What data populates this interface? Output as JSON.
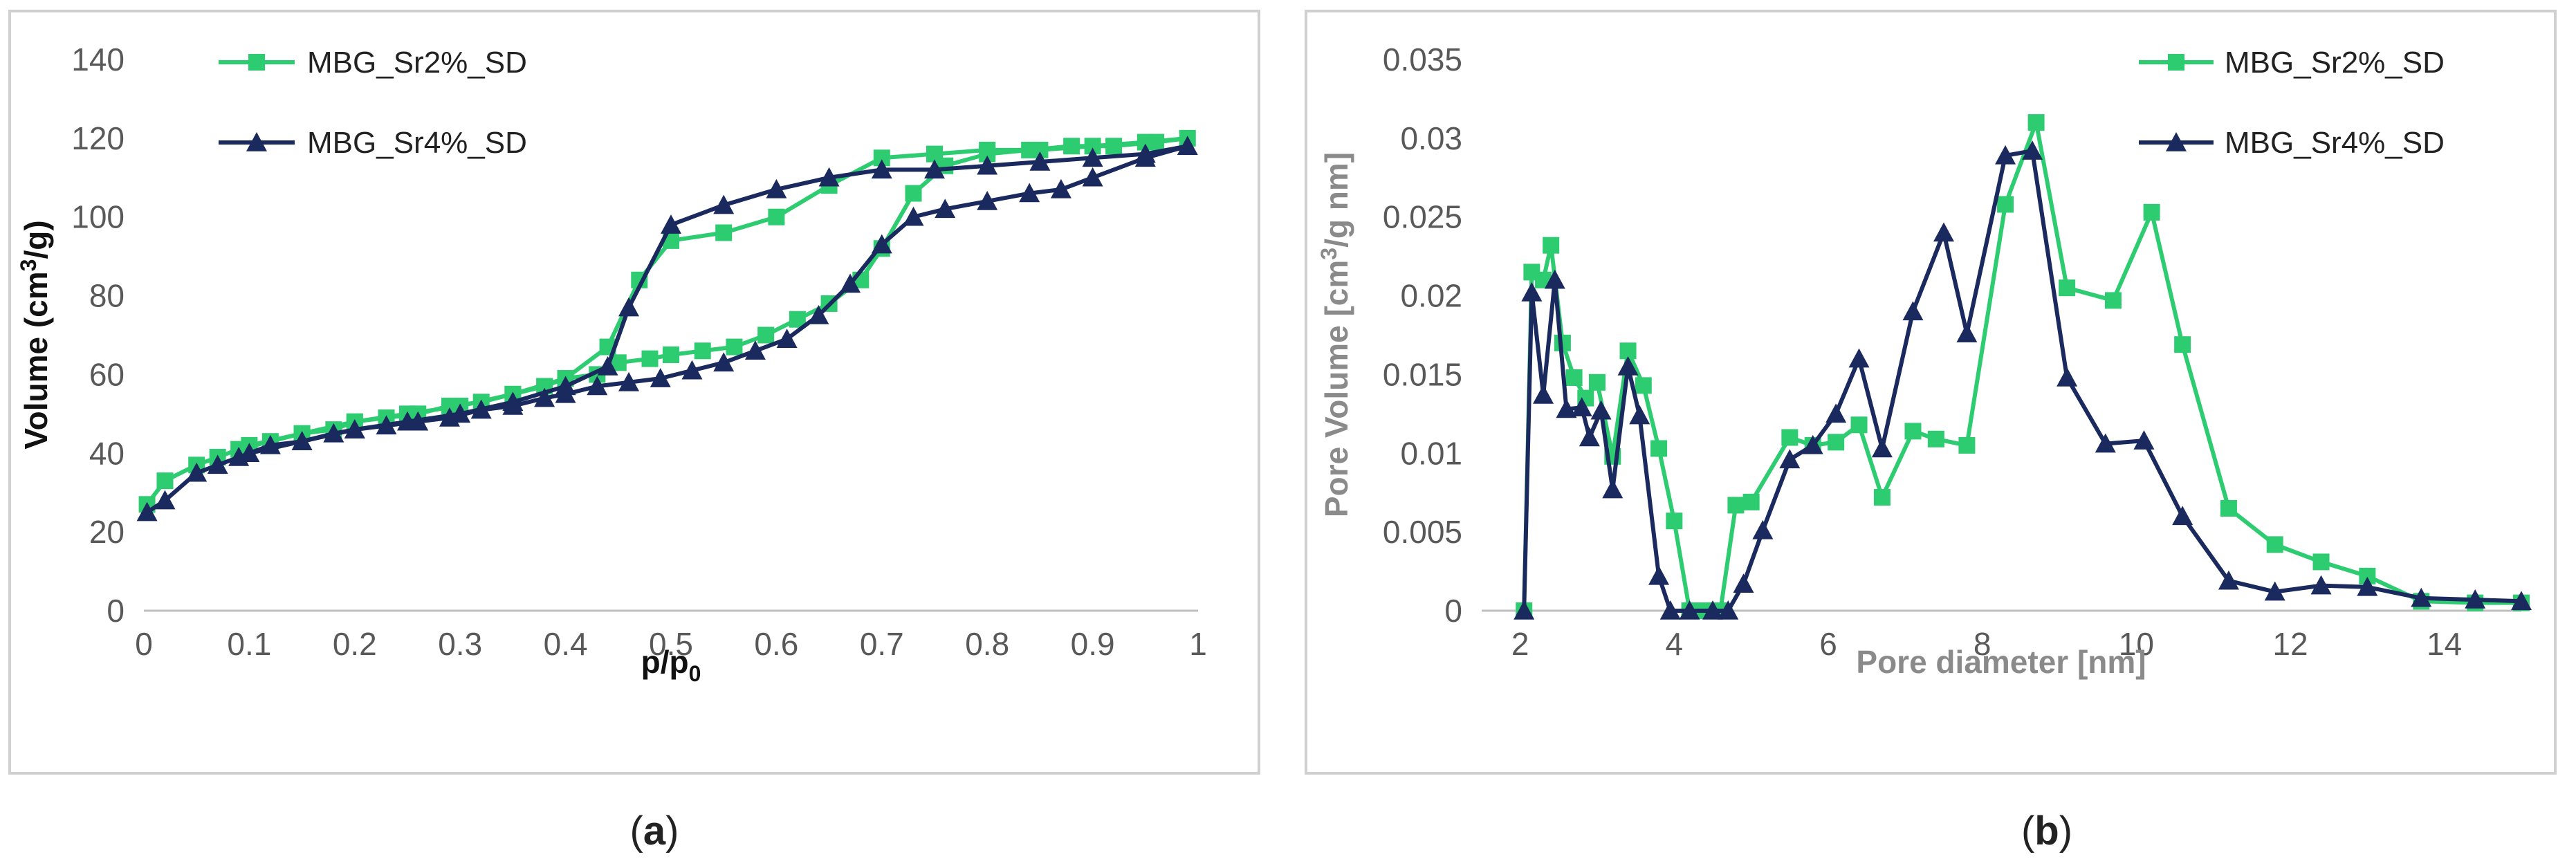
{
  "captions": {
    "a_pre": "(",
    "a_letter": "a",
    "a_post": ")",
    "b_pre": "(",
    "b_letter": "b",
    "b_post": ")"
  },
  "colors": {
    "green": "#2ecc71",
    "navy": "#1b2a5e"
  },
  "chart_data": [
    {
      "type": "line",
      "panel": "a",
      "title": "",
      "xlabel_main": "p/p",
      "xlabel_sub": "0",
      "ylabel_pre": "Volume (cm",
      "ylabel_sup": "3",
      "ylabel_post": "/g)",
      "xlim": [
        0,
        1
      ],
      "ylim": [
        0,
        140
      ],
      "xticks": [
        0,
        0.1,
        0.2,
        0.3,
        0.4,
        0.5,
        0.6,
        0.7,
        0.8,
        0.9,
        1
      ],
      "xtick_labels": [
        "0",
        "0.1",
        "0.2",
        "0.3",
        "0.4",
        "0.5",
        "0.6",
        "0.7",
        "0.8",
        "0.9",
        "1"
      ],
      "yticks": [
        0,
        20,
        40,
        60,
        80,
        100,
        120,
        140
      ],
      "ytick_labels": [
        "0",
        "20",
        "40",
        "60",
        "80",
        "100",
        "120",
        "140"
      ],
      "legend_position": "top-left",
      "series": [
        {
          "name": "MBG_Sr2%_SD",
          "color": "#2ecc71",
          "marker": "square",
          "points": [
            [
              0.003,
              27
            ],
            [
              0.02,
              33
            ],
            [
              0.05,
              37
            ],
            [
              0.07,
              39
            ],
            [
              0.09,
              41
            ],
            [
              0.12,
              43
            ],
            [
              0.15,
              45
            ],
            [
              0.18,
              46
            ],
            [
              0.2,
              48
            ],
            [
              0.23,
              49
            ],
            [
              0.26,
              50
            ],
            [
              0.29,
              52
            ],
            [
              0.32,
              53
            ],
            [
              0.35,
              55
            ],
            [
              0.38,
              57
            ],
            [
              0.4,
              59
            ],
            [
              0.43,
              60
            ],
            [
              0.45,
              63
            ],
            [
              0.48,
              64
            ],
            [
              0.5,
              65
            ],
            [
              0.53,
              66
            ],
            [
              0.56,
              67
            ],
            [
              0.59,
              70
            ],
            [
              0.62,
              74
            ],
            [
              0.65,
              78
            ],
            [
              0.68,
              84
            ],
            [
              0.7,
              92
            ],
            [
              0.73,
              106
            ],
            [
              0.76,
              113
            ],
            [
              0.8,
              116
            ],
            [
              0.84,
              117
            ],
            [
              0.88,
              118
            ],
            [
              0.92,
              118
            ],
            [
              0.96,
              119
            ],
            [
              0.99,
              120
            ],
            [
              0.95,
              119
            ],
            [
              0.9,
              118
            ],
            [
              0.85,
              117
            ],
            [
              0.8,
              117
            ],
            [
              0.75,
              116
            ],
            [
              0.7,
              115
            ],
            [
              0.65,
              108
            ],
            [
              0.6,
              100
            ],
            [
              0.55,
              96
            ],
            [
              0.5,
              94
            ],
            [
              0.47,
              84
            ],
            [
              0.44,
              67
            ],
            [
              0.4,
              59
            ],
            [
              0.35,
              55
            ],
            [
              0.3,
              52
            ],
            [
              0.25,
              50
            ],
            [
              0.2,
              48
            ],
            [
              0.15,
              45
            ],
            [
              0.1,
              42
            ]
          ]
        },
        {
          "name": "MBG_Sr4%_SD",
          "color": "#1b2a5e",
          "marker": "triangle",
          "points": [
            [
              0.003,
              25
            ],
            [
              0.02,
              28
            ],
            [
              0.05,
              35
            ],
            [
              0.07,
              37
            ],
            [
              0.09,
              39
            ],
            [
              0.12,
              42
            ],
            [
              0.15,
              43
            ],
            [
              0.18,
              45
            ],
            [
              0.2,
              46
            ],
            [
              0.23,
              47
            ],
            [
              0.26,
              48
            ],
            [
              0.29,
              49
            ],
            [
              0.32,
              51
            ],
            [
              0.35,
              52
            ],
            [
              0.38,
              54
            ],
            [
              0.4,
              55
            ],
            [
              0.43,
              57
            ],
            [
              0.46,
              58
            ],
            [
              0.49,
              59
            ],
            [
              0.52,
              61
            ],
            [
              0.55,
              63
            ],
            [
              0.58,
              66
            ],
            [
              0.61,
              69
            ],
            [
              0.64,
              75
            ],
            [
              0.67,
              83
            ],
            [
              0.7,
              93
            ],
            [
              0.73,
              100
            ],
            [
              0.76,
              102
            ],
            [
              0.8,
              104
            ],
            [
              0.84,
              106
            ],
            [
              0.87,
              107
            ],
            [
              0.9,
              110
            ],
            [
              0.95,
              115
            ],
            [
              0.99,
              118
            ],
            [
              0.95,
              116
            ],
            [
              0.9,
              115
            ],
            [
              0.85,
              114
            ],
            [
              0.8,
              113
            ],
            [
              0.75,
              112
            ],
            [
              0.7,
              112
            ],
            [
              0.65,
              110
            ],
            [
              0.6,
              107
            ],
            [
              0.55,
              103
            ],
            [
              0.5,
              98
            ],
            [
              0.46,
              77
            ],
            [
              0.44,
              62
            ],
            [
              0.4,
              57
            ],
            [
              0.35,
              53
            ],
            [
              0.3,
              50
            ],
            [
              0.25,
              48
            ],
            [
              0.2,
              46
            ],
            [
              0.15,
              43
            ],
            [
              0.1,
              40
            ]
          ]
        }
      ]
    },
    {
      "type": "line",
      "panel": "b",
      "title": "",
      "xlabel": "Pore diameter [nm]",
      "ylabel_pre": "Pore Volume [cm",
      "ylabel_sup": "3",
      "ylabel_post": "/g nm]",
      "xlim": [
        1.5,
        15
      ],
      "ylim": [
        0,
        0.035
      ],
      "xticks": [
        2,
        4,
        6,
        8,
        10,
        12,
        14
      ],
      "xtick_labels": [
        "2",
        "4",
        "6",
        "8",
        "10",
        "12",
        "14"
      ],
      "yticks": [
        0,
        0.005,
        0.01,
        0.015,
        0.02,
        0.025,
        0.03,
        0.035
      ],
      "ytick_labels": [
        "0",
        "0.005",
        "0.01",
        "0.015",
        "0.02",
        "0.025",
        "0.03",
        "0.035"
      ],
      "legend_position": "top-right",
      "series": [
        {
          "name": "MBG_Sr2%_SD",
          "color": "#2ecc71",
          "marker": "square",
          "points": [
            [
              2.05,
              0
            ],
            [
              2.15,
              0.0215
            ],
            [
              2.3,
              0.021
            ],
            [
              2.4,
              0.0232
            ],
            [
              2.55,
              0.017
            ],
            [
              2.7,
              0.0148
            ],
            [
              2.85,
              0.0135
            ],
            [
              3.0,
              0.0145
            ],
            [
              3.2,
              0.0098
            ],
            [
              3.4,
              0.0165
            ],
            [
              3.6,
              0.0143
            ],
            [
              3.8,
              0.0103
            ],
            [
              4.0,
              0.0057
            ],
            [
              4.2,
              0
            ],
            [
              4.4,
              0
            ],
            [
              4.6,
              0
            ],
            [
              4.8,
              0.0067
            ],
            [
              5.0,
              0.0069
            ],
            [
              5.5,
              0.011
            ],
            [
              5.8,
              0.0105
            ],
            [
              6.1,
              0.0107
            ],
            [
              6.4,
              0.0118
            ],
            [
              6.7,
              0.0072
            ],
            [
              7.1,
              0.0114
            ],
            [
              7.4,
              0.0109
            ],
            [
              7.8,
              0.0105
            ],
            [
              8.3,
              0.0258
            ],
            [
              8.7,
              0.031
            ],
            [
              9.1,
              0.0205
            ],
            [
              9.7,
              0.0197
            ],
            [
              10.2,
              0.0253
            ],
            [
              10.6,
              0.0169
            ],
            [
              11.2,
              0.0065
            ],
            [
              11.8,
              0.0042
            ],
            [
              12.4,
              0.0031
            ],
            [
              13.0,
              0.0022
            ],
            [
              13.7,
              0.0006
            ],
            [
              14.4,
              0.0005
            ],
            [
              15.0,
              0.0005
            ]
          ]
        },
        {
          "name": "MBG_Sr4%_SD",
          "color": "#1b2a5e",
          "marker": "triangle",
          "points": [
            [
              2.05,
              0
            ],
            [
              2.15,
              0.0202
            ],
            [
              2.3,
              0.0137
            ],
            [
              2.45,
              0.021
            ],
            [
              2.6,
              0.0128
            ],
            [
              2.8,
              0.0129
            ],
            [
              2.9,
              0.011
            ],
            [
              3.05,
              0.0127
            ],
            [
              3.2,
              0.0077
            ],
            [
              3.4,
              0.0155
            ],
            [
              3.55,
              0.0124
            ],
            [
              3.8,
              0.0022
            ],
            [
              3.95,
              0
            ],
            [
              4.2,
              0
            ],
            [
              4.5,
              0
            ],
            [
              4.7,
              0
            ],
            [
              4.9,
              0.0017
            ],
            [
              5.15,
              0.0051
            ],
            [
              5.5,
              0.0096
            ],
            [
              5.8,
              0.0105
            ],
            [
              6.1,
              0.0125
            ],
            [
              6.4,
              0.016
            ],
            [
              6.7,
              0.0103
            ],
            [
              7.1,
              0.019
            ],
            [
              7.5,
              0.024
            ],
            [
              7.8,
              0.0176
            ],
            [
              8.3,
              0.0289
            ],
            [
              8.65,
              0.0292
            ],
            [
              9.1,
              0.0148
            ],
            [
              9.6,
              0.0106
            ],
            [
              10.1,
              0.0108
            ],
            [
              10.6,
              0.006
            ],
            [
              11.2,
              0.0019
            ],
            [
              11.8,
              0.0012
            ],
            [
              12.4,
              0.0016
            ],
            [
              13.0,
              0.0015
            ],
            [
              13.7,
              0.0008
            ],
            [
              14.4,
              0.0007
            ],
            [
              15.0,
              0.0006
            ]
          ]
        }
      ]
    }
  ]
}
